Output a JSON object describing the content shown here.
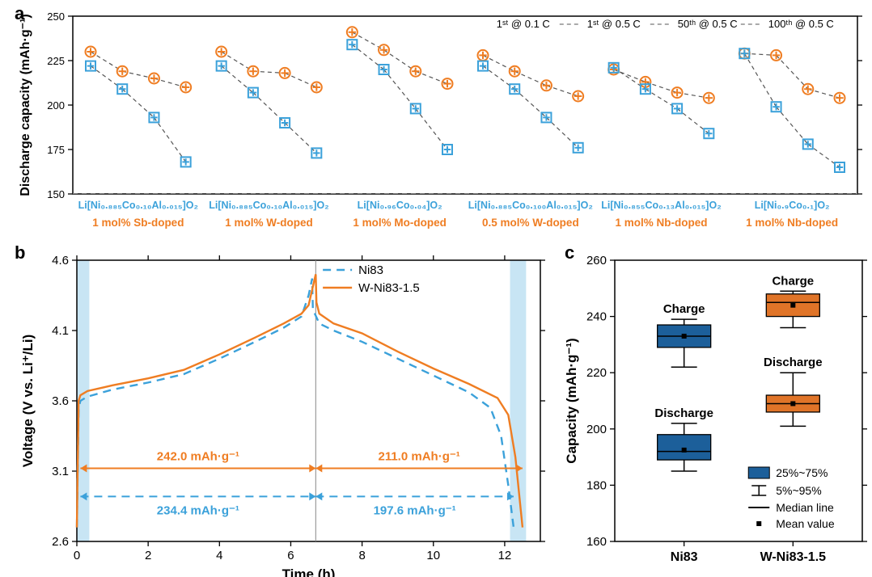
{
  "colors": {
    "blue": "#3ba1da",
    "blue_fill": "#2a6fb0",
    "orange": "#ef7d22",
    "orange_fill": "#e97c28",
    "box_blue": "#1c5f9a",
    "box_orange": "#e07428",
    "light_blue_band": "#c8e5f4",
    "gray_line": "#808080",
    "black": "#000000"
  },
  "panel_a": {
    "label": "a",
    "ylabel": "Discharge capacity (mAh·g⁻¹)",
    "ylim": [
      150,
      250
    ],
    "yticks": [
      150,
      175,
      200,
      225,
      250
    ],
    "legend": [
      "1ˢᵗ @ 0.1 C",
      "1ˢᵗ @ 0.5 C",
      "50ᵗʰ @ 0.5 C",
      "100ᵗʰ @ 0.5 C"
    ],
    "groups": [
      {
        "comp": "Li[Ni₀.₈₈₅Co₀.₁₀Al₀.₀₁₅]O₂",
        "dopant": "1 mol% Sb-doped",
        "orange": [
          230,
          219,
          215,
          210
        ],
        "blue": [
          222,
          209,
          193,
          168
        ]
      },
      {
        "comp": "Li[Ni₀.₈₈₅Co₀.₁₀Al₀.₀₁₅]O₂",
        "dopant": "1 mol% W-doped",
        "orange": [
          230,
          219,
          218,
          210
        ],
        "blue": [
          222,
          207,
          190,
          173
        ]
      },
      {
        "comp": "Li[Ni₀.₉₆Co₀.₀₄]O₂",
        "dopant": "1 mol% Mo-doped",
        "orange": [
          241,
          231,
          219,
          212
        ],
        "blue": [
          234,
          220,
          198,
          175
        ]
      },
      {
        "comp": "Li[Ni₀.₈₈₅Co₀.₁₀₀Al₀.₀₁₅]O₂",
        "dopant": "0.5 mol% W-doped",
        "orange": [
          228,
          219,
          211,
          205
        ],
        "blue": [
          222,
          209,
          193,
          176
        ]
      },
      {
        "comp": "Li[Ni₀.₈₅₅Co₀.₁₃Al₀.₀₁₅]O₂",
        "dopant": "1 mol% Nb-doped",
        "orange": [
          220,
          213,
          207,
          204
        ],
        "blue": [
          221,
          209,
          198,
          184
        ]
      },
      {
        "comp": "Li[Ni₀.₉Co₀.₁]O₂",
        "dopant": "1 mol% Nb-doped",
        "orange": [
          229,
          228,
          209,
          204
        ],
        "blue": [
          229,
          199,
          178,
          165
        ]
      }
    ]
  },
  "panel_b": {
    "label": "b",
    "xlabel": "Time (h)",
    "ylabel": "Voltage (V vs. Li⁺/Li)",
    "xlim": [
      0,
      13
    ],
    "ylim": [
      2.6,
      4.6
    ],
    "xticks": [
      0,
      2,
      4,
      6,
      8,
      10,
      12
    ],
    "yticks": [
      2.6,
      3.1,
      3.6,
      4.1,
      4.6
    ],
    "legend": [
      {
        "label": "Ni83",
        "style": "dash",
        "color_key": "blue"
      },
      {
        "label": "W-Ni83-1.5",
        "style": "solid",
        "color_key": "orange"
      }
    ],
    "annotations": {
      "orange_charge": "242.0 mAh·g⁻¹",
      "orange_discharge": "211.0 mAh·g⁻¹",
      "blue_charge": "234.4 mAh·g⁻¹",
      "blue_discharge": "197.6 mAh·g⁻¹"
    },
    "charge_peak_x": 6.7,
    "series": {
      "w_ni83": [
        [
          0.0,
          2.7
        ],
        [
          0.05,
          3.6
        ],
        [
          0.1,
          3.64
        ],
        [
          0.3,
          3.67
        ],
        [
          1.0,
          3.71
        ],
        [
          2.0,
          3.76
        ],
        [
          3.0,
          3.82
        ],
        [
          4.0,
          3.93
        ],
        [
          5.0,
          4.05
        ],
        [
          5.8,
          4.15
        ],
        [
          6.3,
          4.22
        ],
        [
          6.5,
          4.28
        ],
        [
          6.7,
          4.5
        ],
        [
          6.72,
          4.3
        ],
        [
          6.8,
          4.22
        ],
        [
          7.2,
          4.15
        ],
        [
          8.0,
          4.08
        ],
        [
          9.0,
          3.95
        ],
        [
          10.0,
          3.83
        ],
        [
          11.0,
          3.72
        ],
        [
          11.8,
          3.62
        ],
        [
          12.1,
          3.5
        ],
        [
          12.3,
          3.2
        ],
        [
          12.5,
          2.7
        ]
      ],
      "ni83": [
        [
          0.0,
          2.7
        ],
        [
          0.05,
          3.55
        ],
        [
          0.1,
          3.6
        ],
        [
          0.3,
          3.63
        ],
        [
          1.0,
          3.68
        ],
        [
          2.0,
          3.73
        ],
        [
          3.0,
          3.79
        ],
        [
          4.0,
          3.9
        ],
        [
          5.0,
          4.02
        ],
        [
          5.8,
          4.12
        ],
        [
          6.3,
          4.2
        ],
        [
          6.5,
          4.35
        ],
        [
          6.6,
          4.47
        ],
        [
          6.62,
          4.25
        ],
        [
          6.8,
          4.15
        ],
        [
          7.2,
          4.1
        ],
        [
          8.0,
          4.02
        ],
        [
          9.0,
          3.9
        ],
        [
          10.0,
          3.78
        ],
        [
          11.0,
          3.66
        ],
        [
          11.6,
          3.55
        ],
        [
          11.9,
          3.35
        ],
        [
          12.1,
          3.0
        ],
        [
          12.25,
          2.7
        ]
      ]
    }
  },
  "panel_c": {
    "label": "c",
    "ylabel": "Capacity (mAh·g⁻¹)",
    "ylim": [
      160,
      260
    ],
    "yticks": [
      160,
      180,
      200,
      220,
      240,
      260
    ],
    "xlabels": [
      "Ni83",
      "W-Ni83-1.5"
    ],
    "boxes": [
      {
        "group": 0,
        "label": "Charge",
        "color_key": "box_blue",
        "q1": 229,
        "q3": 237,
        "median": 233,
        "mean": 233,
        "lo": 222,
        "hi": 239
      },
      {
        "group": 0,
        "label": "Discharge",
        "color_key": "box_blue",
        "q1": 189,
        "q3": 198,
        "median": 192,
        "mean": 192.5,
        "lo": 185,
        "hi": 202
      },
      {
        "group": 1,
        "label": "Charge",
        "color_key": "box_orange",
        "q1": 240,
        "q3": 248,
        "median": 245,
        "mean": 244,
        "lo": 236,
        "hi": 249
      },
      {
        "group": 1,
        "label": "Discharge",
        "color_key": "box_orange",
        "q1": 206,
        "q3": 212,
        "median": 209,
        "mean": 209,
        "lo": 201,
        "hi": 220
      }
    ],
    "legend": {
      "box": "25%~75%",
      "whisker": "5%~95%",
      "median": "Median line",
      "mean": "Mean value"
    }
  }
}
